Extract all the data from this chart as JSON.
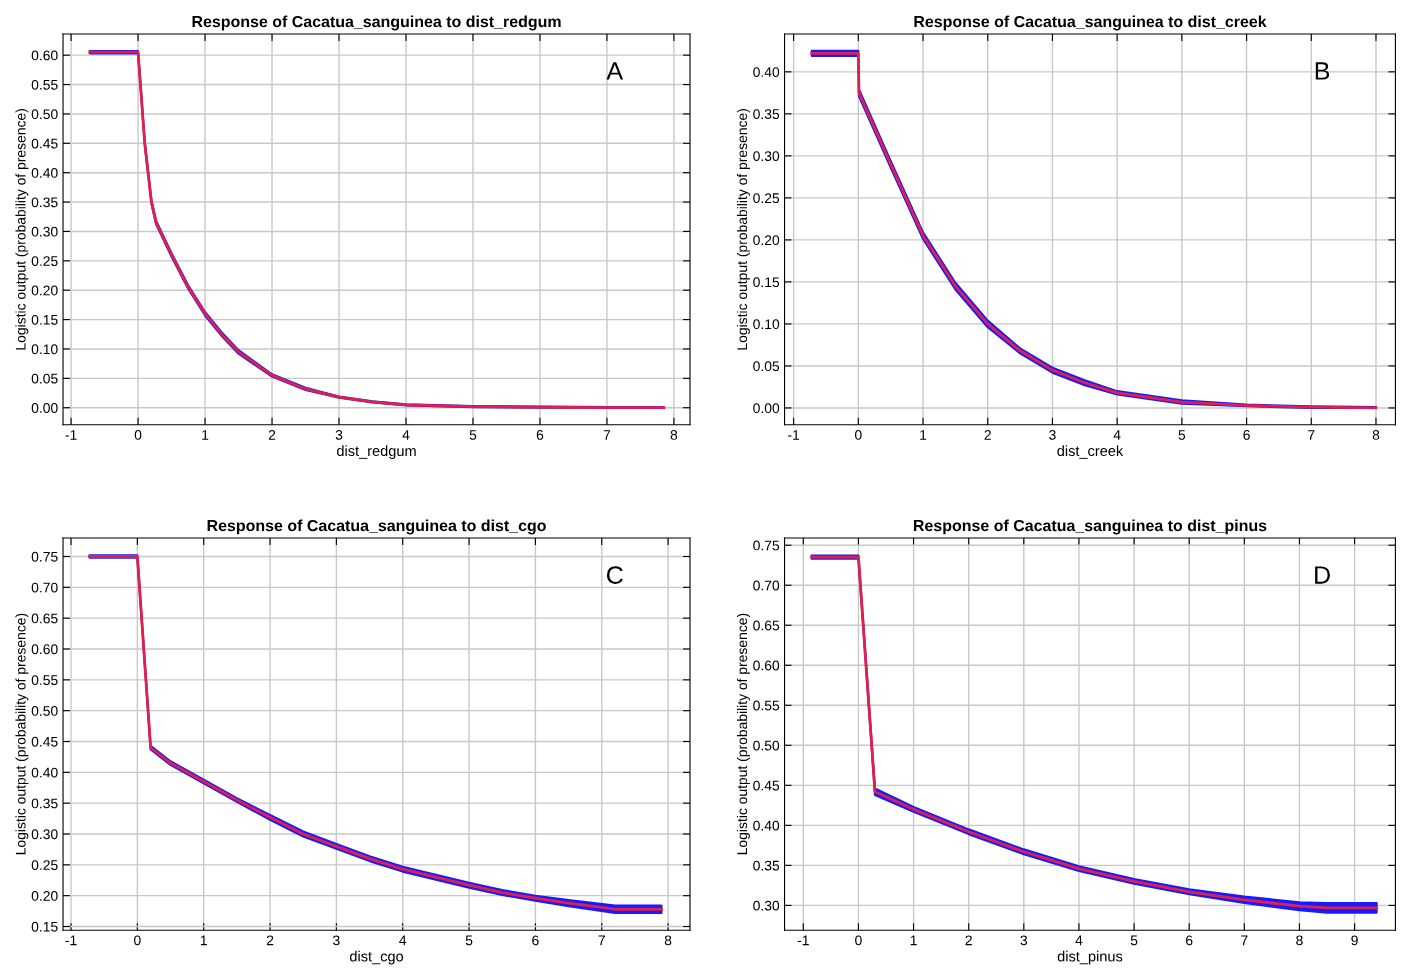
{
  "chart_data": [
    {
      "type": "line",
      "title": "Response of Cacatua_sanguinea to dist_redgum",
      "xlabel": "dist_redgum",
      "ylabel": "Logistic output (probability of presence)",
      "annotations": [
        "A"
      ],
      "grid": true,
      "xlim": [
        -1.12,
        8.24
      ],
      "ylim": [
        -0.029,
        0.636
      ],
      "xticks": [
        -1,
        0,
        1,
        2,
        3,
        4,
        5,
        6,
        7,
        8
      ],
      "yticks": [
        {
          "value": 0,
          "label": "0.00"
        },
        {
          "value": 0.05,
          "label": "0.05"
        },
        {
          "value": 0.1,
          "label": "0.10"
        },
        {
          "value": 0.15,
          "label": "0.15"
        },
        {
          "value": 0.2,
          "label": "0.20"
        },
        {
          "value": 0.25,
          "label": "0.25"
        },
        {
          "value": 0.3,
          "label": "0.30"
        },
        {
          "value": 0.35,
          "label": "0.35"
        },
        {
          "value": 0.4,
          "label": "0.40"
        },
        {
          "value": 0.45,
          "label": "0.45"
        },
        {
          "value": 0.5,
          "label": "0.50"
        },
        {
          "value": 0.55,
          "label": "0.55"
        },
        {
          "value": 0.6,
          "label": "0.60"
        }
      ],
      "series": [
        {
          "color": "#e0204a",
          "x": [
            -0.72,
            0,
            0.1,
            0.2,
            0.27,
            0.5,
            0.75,
            1,
            1.25,
            1.5,
            2,
            2.5,
            3,
            3.5,
            4,
            5,
            6,
            7,
            7.85
          ],
          "values": [
            0.605,
            0.605,
            0.45,
            0.35,
            0.315,
            0.26,
            0.205,
            0.16,
            0.125,
            0.095,
            0.055,
            0.032,
            0.018,
            0.01,
            0.005,
            0.002,
            0.001,
            0,
            0
          ],
          "lower": [
            0.603,
            0.603,
            0.447,
            0.347,
            0.312,
            0.257,
            0.202,
            0.157,
            0.122,
            0.092,
            0.053,
            0.03,
            0.017,
            0.009,
            0.004,
            0.001,
            0,
            0,
            0
          ],
          "upper": [
            0.607,
            0.607,
            0.453,
            0.353,
            0.318,
            0.263,
            0.208,
            0.163,
            0.128,
            0.098,
            0.057,
            0.034,
            0.019,
            0.011,
            0.006,
            0.003,
            0.002,
            0.001,
            0.001
          ]
        }
      ]
    },
    {
      "type": "line",
      "title": "Response of Cacatua_sanguinea to dist_creek",
      "xlabel": "dist_creek",
      "ylabel": "Logistic output (probability of presence)",
      "annotations": [
        "B"
      ],
      "grid": true,
      "xlim": [
        -1.14,
        8.3
      ],
      "ylim": [
        -0.02,
        0.445
      ],
      "xticks": [
        -1,
        0,
        1,
        2,
        3,
        4,
        5,
        6,
        7,
        8
      ],
      "yticks": [
        {
          "value": 0,
          "label": "0.00"
        },
        {
          "value": 0.05,
          "label": "0.05"
        },
        {
          "value": 0.1,
          "label": "0.10"
        },
        {
          "value": 0.15,
          "label": "0.15"
        },
        {
          "value": 0.2,
          "label": "0.20"
        },
        {
          "value": 0.25,
          "label": "0.25"
        },
        {
          "value": 0.3,
          "label": "0.30"
        },
        {
          "value": 0.35,
          "label": "0.35"
        },
        {
          "value": 0.4,
          "label": "0.40"
        }
      ],
      "series": [
        {
          "color": "#e0204a",
          "x": [
            -0.72,
            0,
            0.01,
            0.5,
            1,
            1.5,
            2,
            2.5,
            3,
            3.5,
            4,
            5,
            6,
            7,
            8
          ],
          "values": [
            0.422,
            0.422,
            0.375,
            0.29,
            0.205,
            0.145,
            0.1,
            0.068,
            0.045,
            0.03,
            0.018,
            0.007,
            0.003,
            0.001,
            0
          ],
          "lower": [
            0.419,
            0.419,
            0.371,
            0.286,
            0.201,
            0.141,
            0.096,
            0.065,
            0.042,
            0.027,
            0.016,
            0.005,
            0.002,
            0,
            0
          ],
          "upper": [
            0.425,
            0.425,
            0.379,
            0.294,
            0.209,
            0.149,
            0.104,
            0.071,
            0.048,
            0.033,
            0.02,
            0.009,
            0.004,
            0.002,
            0.001
          ]
        }
      ]
    },
    {
      "type": "line",
      "title": "Response of Cacatua_sanguinea to dist_cgo",
      "xlabel": "dist_cgo",
      "ylabel": "Logistic output (probability of presence)",
      "annotations": [
        "C"
      ],
      "grid": true,
      "xlim": [
        -1.12,
        8.33
      ],
      "ylim": [
        0.144,
        0.78
      ],
      "xticks": [
        -1,
        0,
        1,
        2,
        3,
        4,
        5,
        6,
        7,
        8
      ],
      "yticks": [
        {
          "value": 0.15,
          "label": "0.15"
        },
        {
          "value": 0.2,
          "label": "0.20"
        },
        {
          "value": 0.25,
          "label": "0.25"
        },
        {
          "value": 0.3,
          "label": "0.30"
        },
        {
          "value": 0.35,
          "label": "0.35"
        },
        {
          "value": 0.4,
          "label": "0.40"
        },
        {
          "value": 0.45,
          "label": "0.45"
        },
        {
          "value": 0.5,
          "label": "0.50"
        },
        {
          "value": 0.55,
          "label": "0.55"
        },
        {
          "value": 0.6,
          "label": "0.60"
        },
        {
          "value": 0.65,
          "label": "0.65"
        },
        {
          "value": 0.7,
          "label": "0.70"
        },
        {
          "value": 0.75,
          "label": "0.75"
        }
      ],
      "series": [
        {
          "color": "#e0204a",
          "x": [
            -0.72,
            0,
            0.2,
            0.5,
            1,
            1.5,
            2,
            2.5,
            3,
            3.5,
            4,
            4.5,
            5,
            5.5,
            6,
            6.5,
            7.2,
            7.9
          ],
          "values": [
            0.75,
            0.75,
            0.44,
            0.415,
            0.385,
            0.355,
            0.327,
            0.3,
            0.28,
            0.26,
            0.243,
            0.23,
            0.217,
            0.205,
            0.196,
            0.188,
            0.178,
            0.178
          ],
          "lower": [
            0.748,
            0.748,
            0.437,
            0.412,
            0.382,
            0.352,
            0.323,
            0.296,
            0.276,
            0.256,
            0.239,
            0.226,
            0.213,
            0.201,
            0.192,
            0.183,
            0.172,
            0.172
          ],
          "upper": [
            0.752,
            0.752,
            0.443,
            0.418,
            0.388,
            0.358,
            0.331,
            0.304,
            0.284,
            0.264,
            0.247,
            0.234,
            0.221,
            0.209,
            0.2,
            0.193,
            0.184,
            0.184
          ]
        }
      ]
    },
    {
      "type": "line",
      "title": "Response of Cacatua_sanguinea to dist_pinus",
      "xlabel": "dist_pinus",
      "ylabel": "Logistic output (probability of presence)",
      "annotations": [
        "D"
      ],
      "grid": true,
      "xlim": [
        -1.34,
        9.74
      ],
      "ylim": [
        0.269,
        0.759
      ],
      "xticks": [
        -1,
        0,
        1,
        2,
        3,
        4,
        5,
        6,
        7,
        8,
        9
      ],
      "yticks": [
        {
          "value": 0.3,
          "label": "0.30"
        },
        {
          "value": 0.35,
          "label": "0.35"
        },
        {
          "value": 0.4,
          "label": "0.40"
        },
        {
          "value": 0.45,
          "label": "0.45"
        },
        {
          "value": 0.5,
          "label": "0.50"
        },
        {
          "value": 0.55,
          "label": "0.55"
        },
        {
          "value": 0.6,
          "label": "0.60"
        },
        {
          "value": 0.65,
          "label": "0.65"
        },
        {
          "value": 0.7,
          "label": "0.70"
        },
        {
          "value": 0.75,
          "label": "0.75"
        }
      ],
      "series": [
        {
          "color": "#e0204a",
          "x": [
            -0.85,
            0,
            0.3,
            1,
            2,
            3,
            4,
            5,
            6,
            7,
            8,
            8.5,
            9.4
          ],
          "values": [
            0.735,
            0.735,
            0.442,
            0.42,
            0.392,
            0.367,
            0.346,
            0.33,
            0.317,
            0.307,
            0.299,
            0.297,
            0.297
          ],
          "lower": [
            0.733,
            0.733,
            0.438,
            0.417,
            0.389,
            0.364,
            0.343,
            0.327,
            0.314,
            0.303,
            0.294,
            0.291,
            0.291
          ],
          "upper": [
            0.737,
            0.737,
            0.446,
            0.423,
            0.395,
            0.37,
            0.349,
            0.333,
            0.32,
            0.311,
            0.304,
            0.303,
            0.303
          ]
        }
      ]
    }
  ]
}
